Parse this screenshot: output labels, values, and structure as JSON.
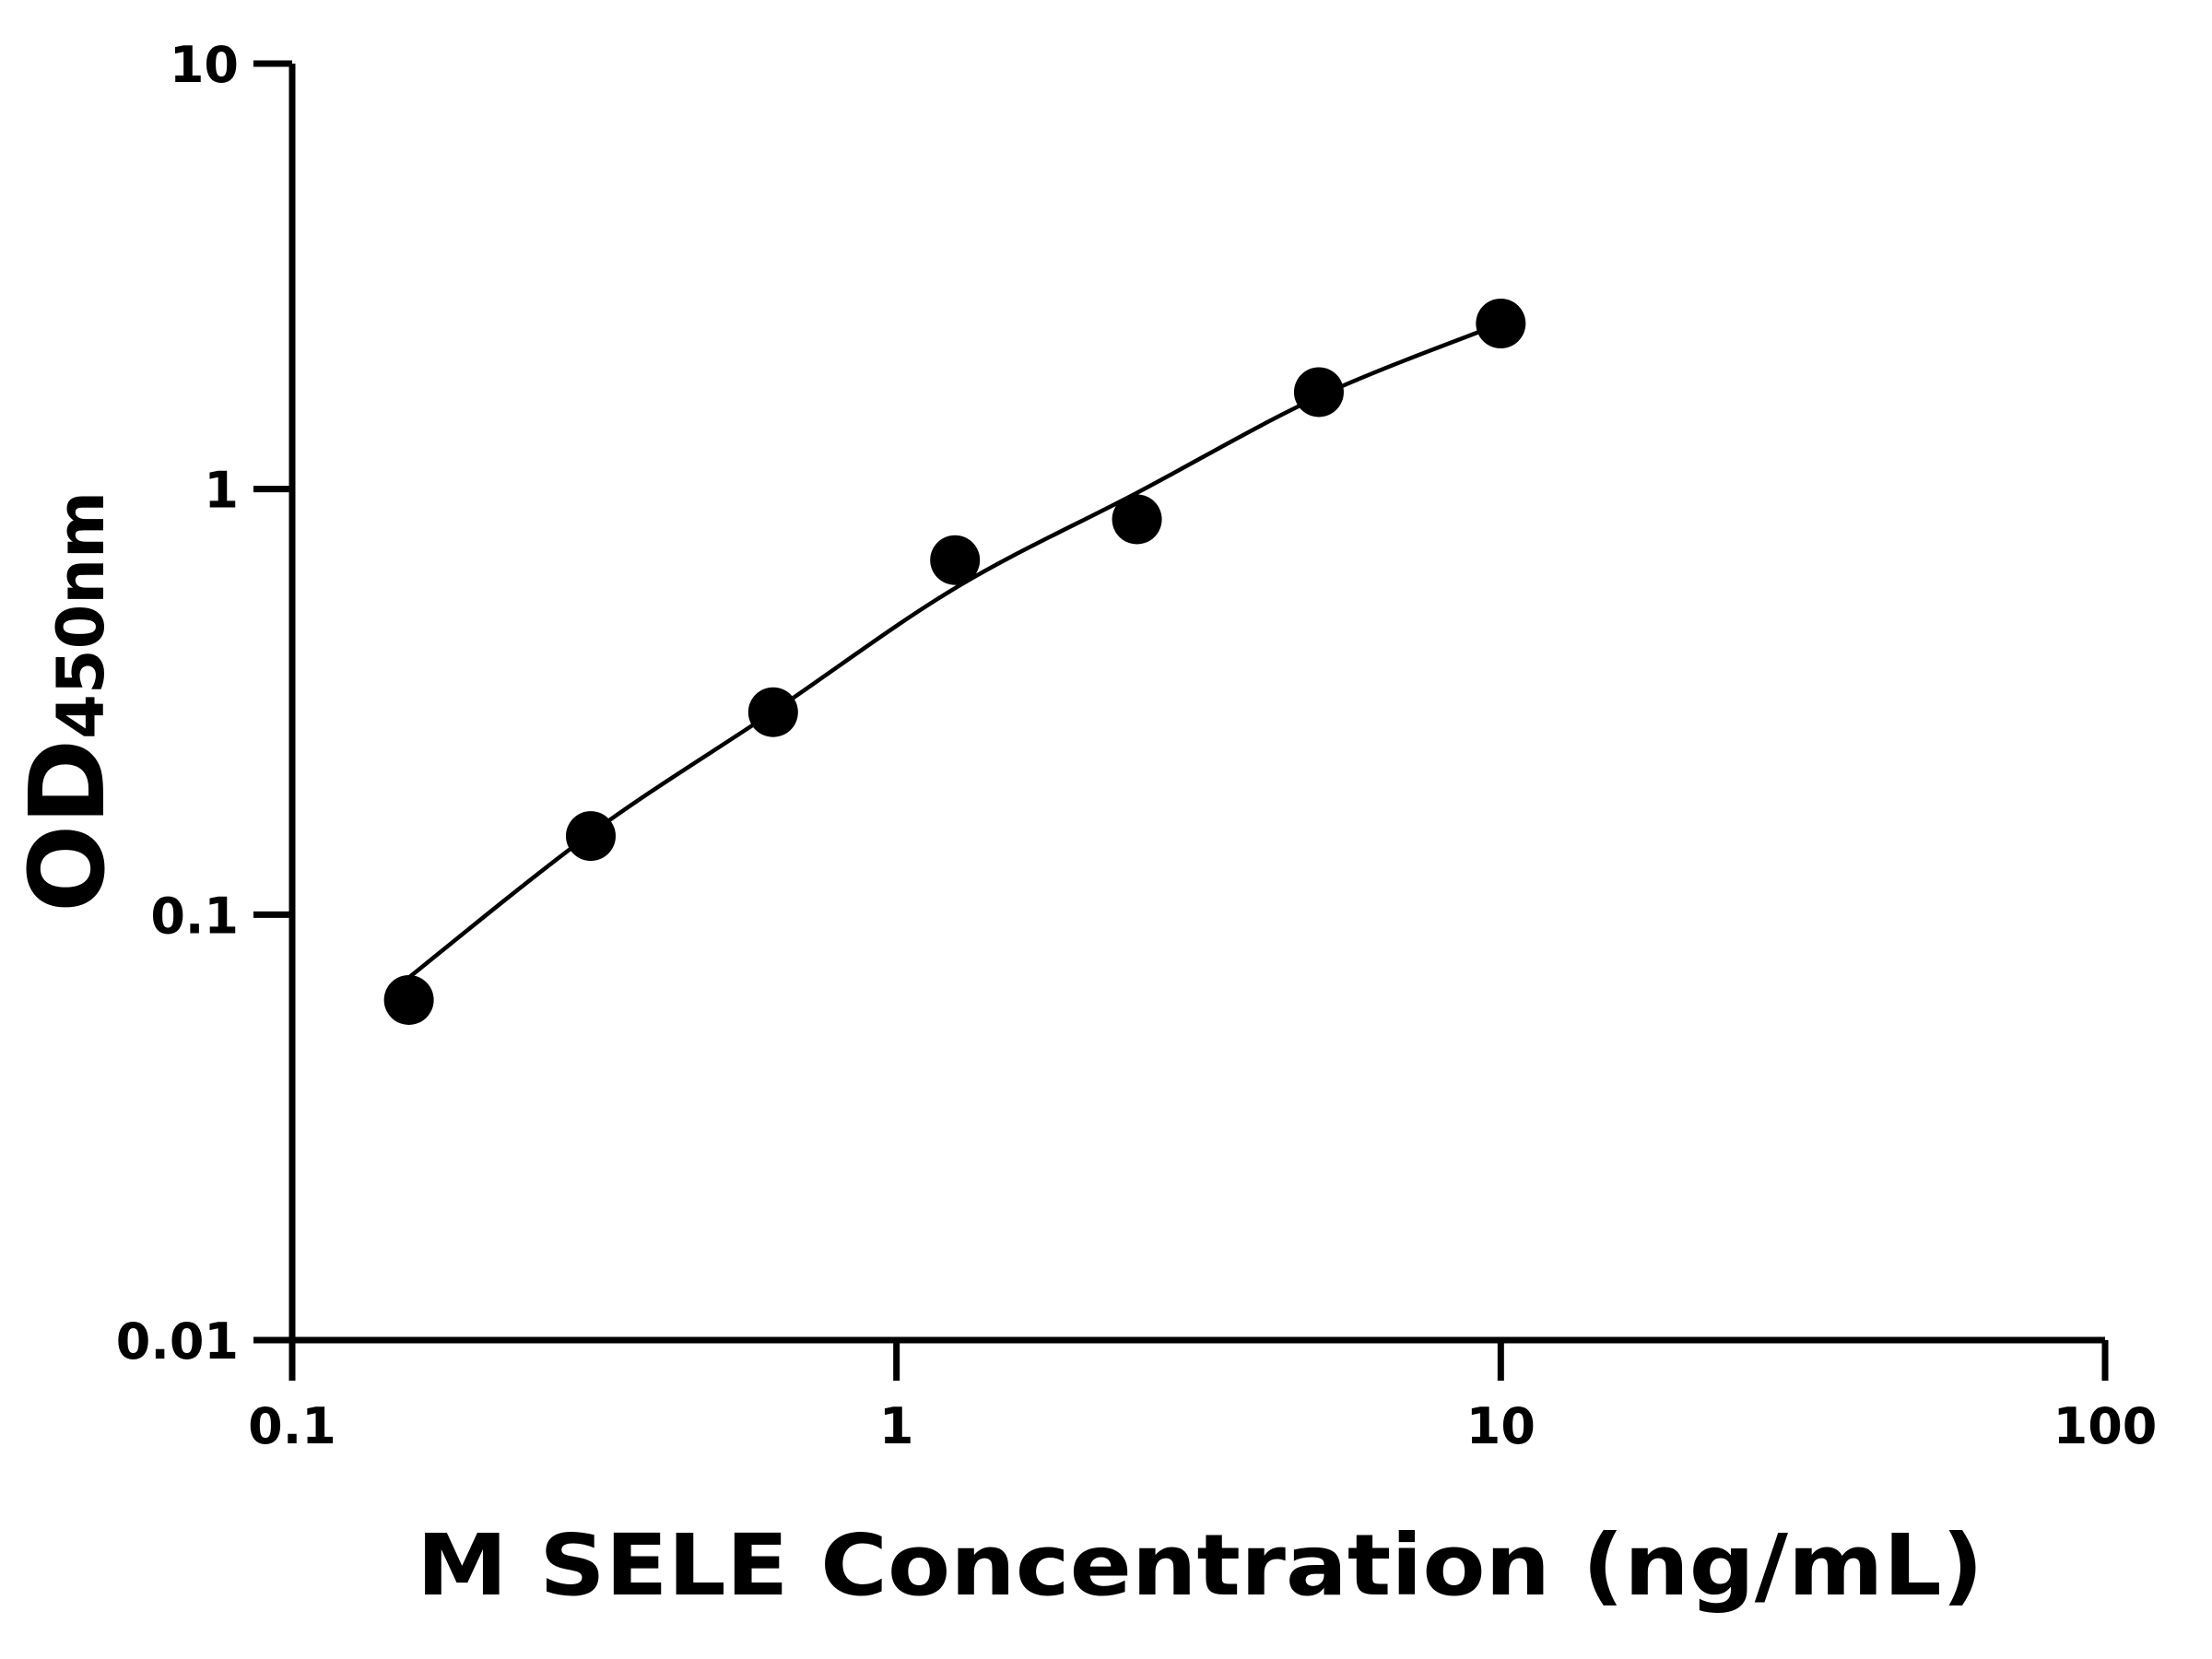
{
  "chart_data": {
    "type": "scatter",
    "title": "",
    "xlabel": "M SELE Concentration (ng/mL)",
    "ylabel_main": "OD",
    "ylabel_sub": "450nm",
    "x_scale": "log",
    "y_scale": "log",
    "xlim": [
      0.1,
      100
    ],
    "ylim": [
      0.01,
      10
    ],
    "x_ticks": [
      0.1,
      1,
      10,
      100
    ],
    "x_tick_labels": [
      "0.1",
      "1",
      "10",
      "100"
    ],
    "y_ticks": [
      0.01,
      0.1,
      1,
      10
    ],
    "y_tick_labels": [
      "0.01",
      "0.1",
      "1",
      "10"
    ],
    "grid": false,
    "legend": "none",
    "points": {
      "x": [
        0.156,
        0.312,
        0.625,
        1.25,
        2.5,
        5,
        10
      ],
      "y": [
        0.063,
        0.153,
        0.299,
        0.681,
        0.849,
        1.69,
        2.45
      ]
    },
    "fit_curve": {
      "x": [
        0.15,
        0.312,
        0.625,
        1.25,
        2.5,
        5,
        10
      ],
      "y": [
        0.068,
        0.155,
        0.3,
        0.585,
        0.98,
        1.65,
        2.45
      ]
    },
    "colors": {
      "marker": "#000000",
      "line": "#000000",
      "axis": "#000000"
    }
  }
}
